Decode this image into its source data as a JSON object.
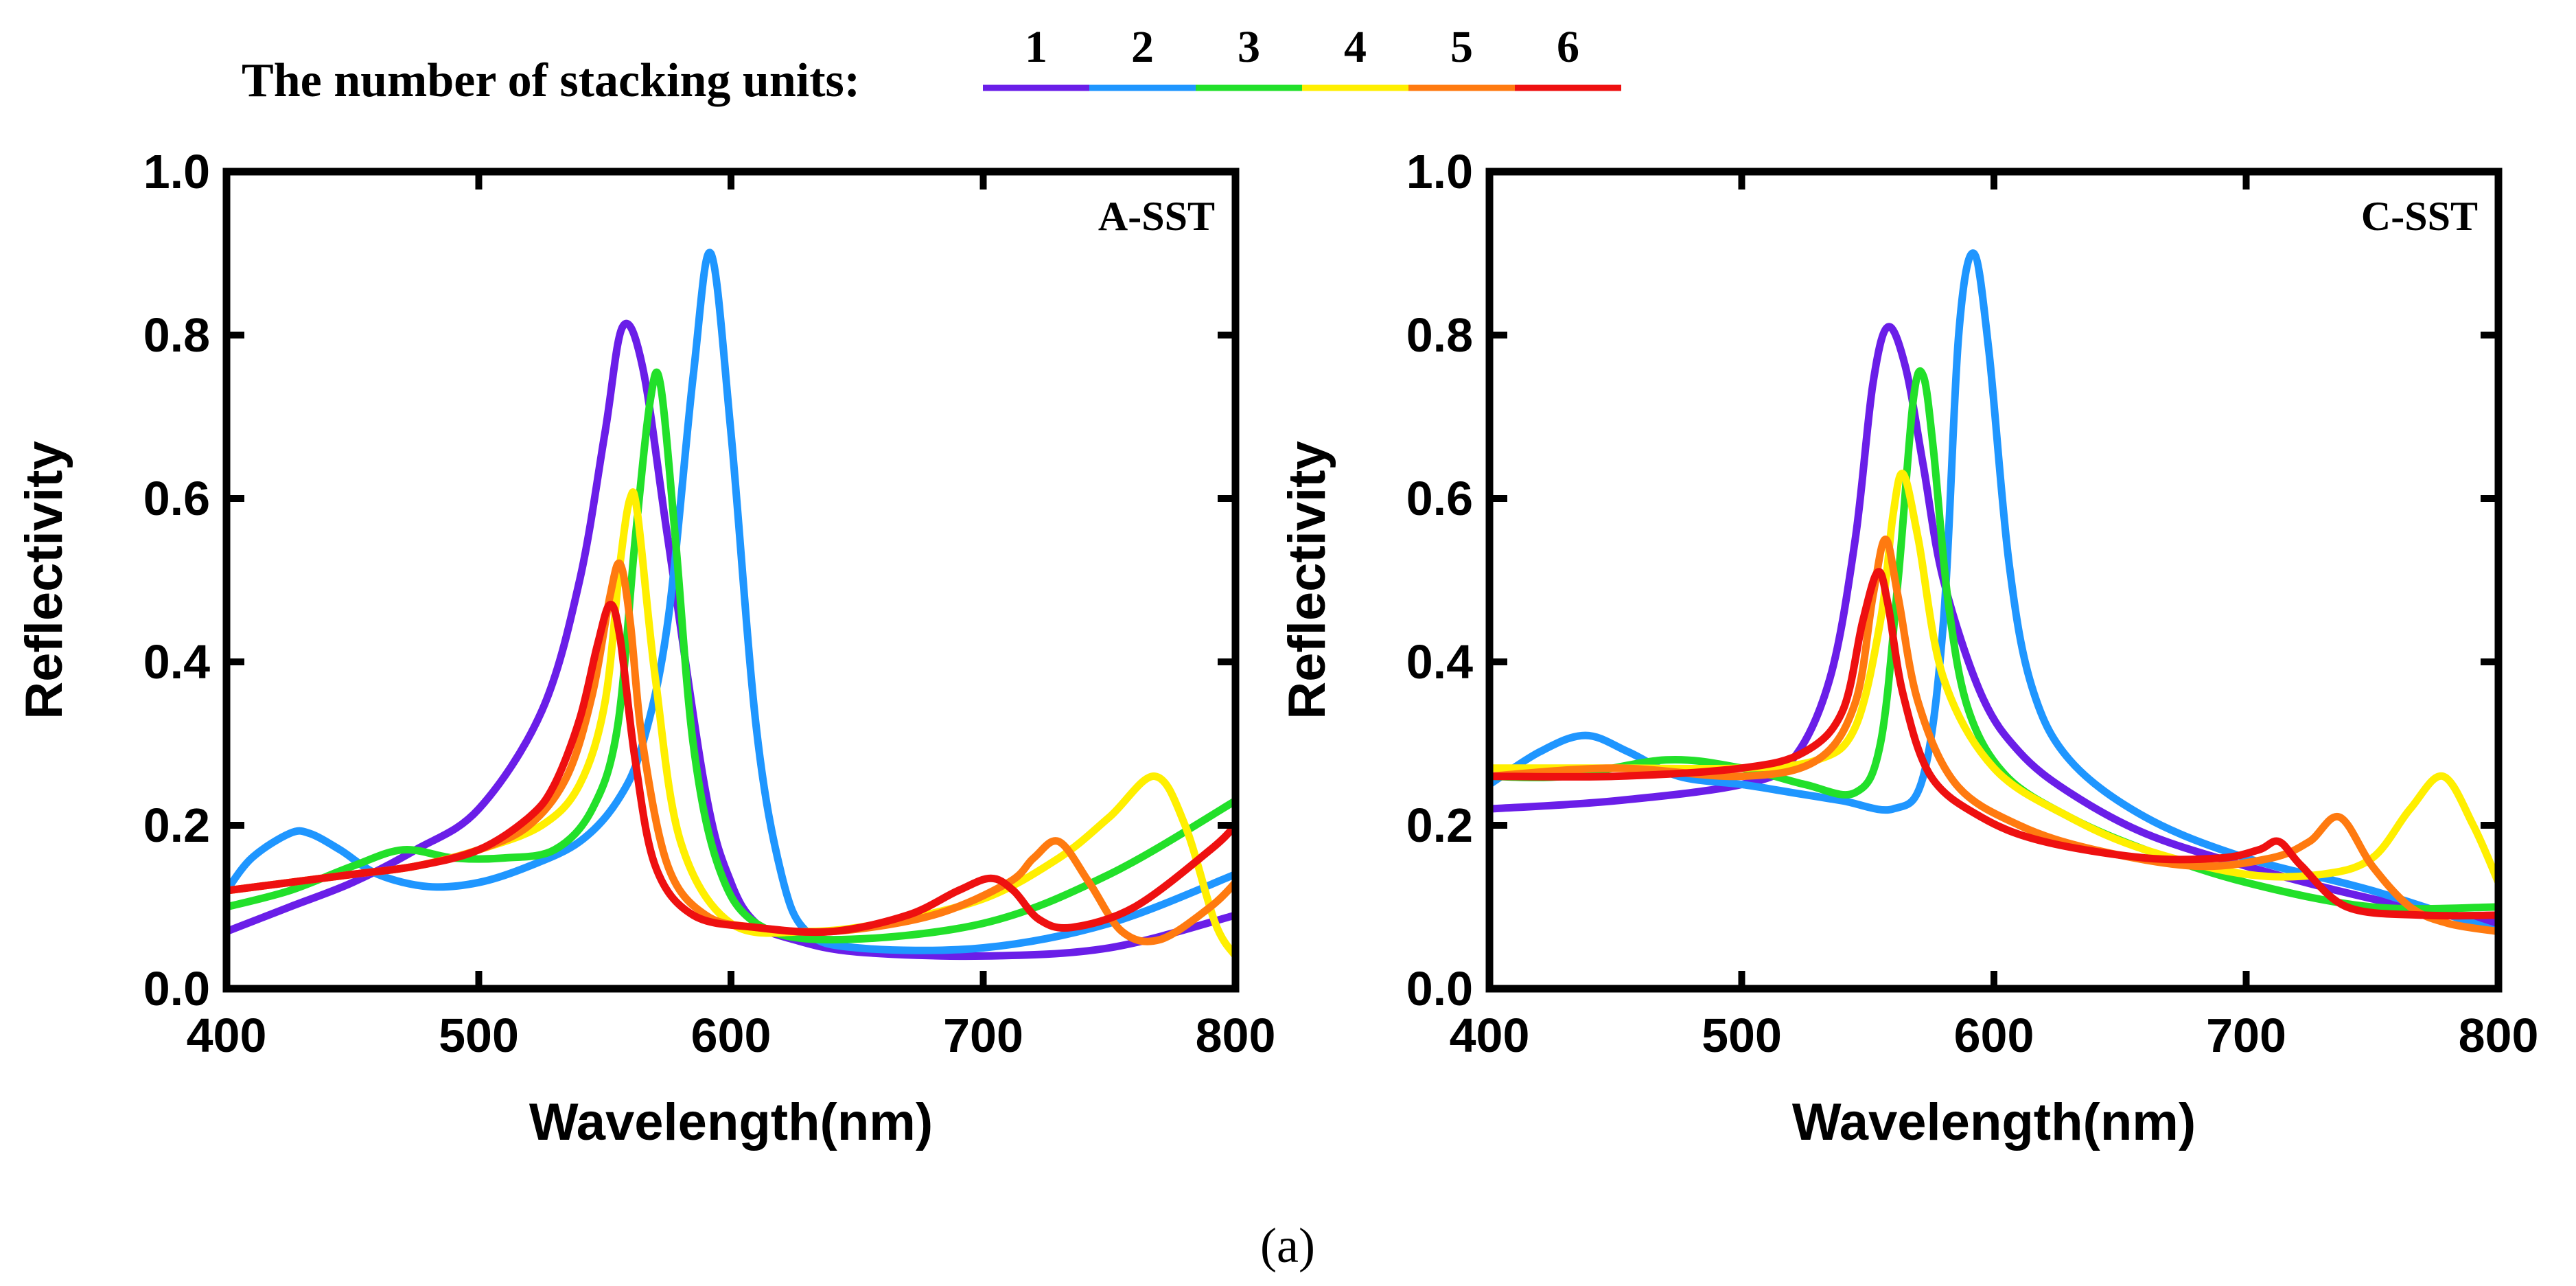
{
  "figure_label": "(a)",
  "legend": {
    "title": "The number of stacking units:",
    "entries": [
      {
        "label": "1",
        "color": "#6a1ee8"
      },
      {
        "label": "2",
        "color": "#1f96ff"
      },
      {
        "label": "3",
        "color": "#22e02a"
      },
      {
        "label": "4",
        "color": "#ffef00"
      },
      {
        "label": "5",
        "color": "#ff7a10"
      },
      {
        "label": "6",
        "color": "#ee1010"
      }
    ]
  },
  "chart_data": [
    {
      "type": "line",
      "title": "A-SST",
      "xlabel": "Wavelength(nm)",
      "ylabel": "Reflectivity",
      "xlim": [
        400,
        800
      ],
      "ylim": [
        0.0,
        1.0
      ],
      "xticks": [
        "400",
        "500",
        "600",
        "700",
        "800"
      ],
      "yticks": [
        "0.0",
        "0.2",
        "0.4",
        "0.6",
        "0.8",
        "1.0"
      ],
      "series": [
        {
          "name": "1",
          "color": "#6a1ee8",
          "x": [
            400,
            425,
            450,
            475,
            500,
            525,
            540,
            550,
            557,
            565,
            575,
            590,
            600,
            610,
            625,
            650,
            700,
            750,
            800
          ],
          "y": [
            0.07,
            0.1,
            0.13,
            0.17,
            0.22,
            0.34,
            0.5,
            0.68,
            0.81,
            0.76,
            0.55,
            0.24,
            0.13,
            0.08,
            0.06,
            0.045,
            0.04,
            0.05,
            0.09
          ]
        },
        {
          "name": "2",
          "color": "#1f96ff",
          "x": [
            400,
            410,
            425,
            433,
            445,
            460,
            480,
            500,
            520,
            540,
            555,
            565,
            575,
            585,
            592,
            600,
            610,
            620,
            630,
            650,
            700,
            750,
            800
          ],
          "y": [
            0.12,
            0.16,
            0.19,
            0.19,
            0.17,
            0.14,
            0.125,
            0.13,
            0.15,
            0.18,
            0.23,
            0.3,
            0.45,
            0.75,
            0.9,
            0.68,
            0.32,
            0.14,
            0.07,
            0.05,
            0.05,
            0.08,
            0.14
          ]
        },
        {
          "name": "3",
          "color": "#22e02a",
          "x": [
            400,
            425,
            450,
            470,
            490,
            510,
            530,
            545,
            555,
            562,
            568,
            572,
            578,
            585,
            595,
            610,
            640,
            700,
            750,
            800
          ],
          "y": [
            0.1,
            0.12,
            0.15,
            0.17,
            0.16,
            0.16,
            0.17,
            0.22,
            0.32,
            0.55,
            0.72,
            0.74,
            0.55,
            0.3,
            0.15,
            0.08,
            0.06,
            0.08,
            0.14,
            0.23
          ]
        },
        {
          "name": "4",
          "color": "#ffef00",
          "x": [
            400,
            425,
            450,
            475,
            500,
            525,
            540,
            550,
            556,
            560,
            563,
            570,
            580,
            600,
            630,
            660,
            700,
            730,
            750,
            768,
            780,
            792,
            800
          ],
          "y": [
            0.12,
            0.13,
            0.14,
            0.15,
            0.17,
            0.2,
            0.25,
            0.35,
            0.52,
            0.6,
            0.58,
            0.38,
            0.18,
            0.08,
            0.07,
            0.08,
            0.11,
            0.16,
            0.21,
            0.26,
            0.2,
            0.08,
            0.04
          ]
        },
        {
          "name": "5",
          "color": "#ff7a10",
          "x": [
            400,
            425,
            450,
            475,
            500,
            520,
            535,
            545,
            552,
            556,
            560,
            565,
            575,
            590,
            610,
            640,
            680,
            710,
            720,
            730,
            742,
            755,
            770,
            790,
            800
          ],
          "y": [
            0.12,
            0.13,
            0.14,
            0.15,
            0.17,
            0.2,
            0.26,
            0.36,
            0.48,
            0.52,
            0.45,
            0.3,
            0.15,
            0.09,
            0.075,
            0.07,
            0.09,
            0.13,
            0.16,
            0.18,
            0.13,
            0.07,
            0.06,
            0.1,
            0.13
          ]
        },
        {
          "name": "6",
          "color": "#ee1010",
          "x": [
            400,
            425,
            450,
            475,
            500,
            520,
            530,
            540,
            547,
            552,
            556,
            562,
            570,
            585,
            610,
            640,
            670,
            690,
            703,
            712,
            722,
            735,
            760,
            790,
            800
          ],
          "y": [
            0.12,
            0.13,
            0.14,
            0.15,
            0.17,
            0.21,
            0.25,
            0.33,
            0.42,
            0.47,
            0.43,
            0.28,
            0.15,
            0.09,
            0.075,
            0.07,
            0.09,
            0.12,
            0.135,
            0.12,
            0.085,
            0.075,
            0.1,
            0.17,
            0.2
          ]
        }
      ]
    },
    {
      "type": "line",
      "title": "C-SST",
      "xlabel": "Wavelength(nm)",
      "ylabel": "Reflectivity",
      "xlim": [
        400,
        800
      ],
      "ylim": [
        0.0,
        1.0
      ],
      "xticks": [
        "400",
        "500",
        "600",
        "700",
        "800"
      ],
      "yticks": [
        "0.0",
        "0.2",
        "0.4",
        "0.6",
        "0.8",
        "1.0"
      ],
      "series": [
        {
          "name": "1",
          "color": "#6a1ee8",
          "x": [
            400,
            450,
            500,
            520,
            535,
            545,
            552,
            558,
            565,
            572,
            580,
            595,
            610,
            630,
            660,
            700,
            750,
            800
          ],
          "y": [
            0.22,
            0.23,
            0.25,
            0.28,
            0.38,
            0.55,
            0.74,
            0.81,
            0.76,
            0.64,
            0.5,
            0.36,
            0.29,
            0.24,
            0.19,
            0.15,
            0.11,
            0.08
          ]
        },
        {
          "name": "2",
          "color": "#1f96ff",
          "x": [
            400,
            420,
            438,
            455,
            475,
            500,
            520,
            540,
            560,
            572,
            580,
            586,
            592,
            598,
            606,
            615,
            630,
            660,
            700,
            750,
            800
          ],
          "y": [
            0.25,
            0.29,
            0.31,
            0.29,
            0.26,
            0.25,
            0.24,
            0.23,
            0.22,
            0.26,
            0.45,
            0.8,
            0.9,
            0.78,
            0.52,
            0.37,
            0.28,
            0.21,
            0.16,
            0.12,
            0.07
          ]
        },
        {
          "name": "3",
          "color": "#22e02a",
          "x": [
            400,
            430,
            470,
            500,
            525,
            545,
            555,
            562,
            568,
            572,
            576,
            582,
            590,
            605,
            630,
            660,
            700,
            750,
            800
          ],
          "y": [
            0.26,
            0.26,
            0.28,
            0.27,
            0.25,
            0.24,
            0.3,
            0.5,
            0.72,
            0.75,
            0.66,
            0.47,
            0.34,
            0.26,
            0.21,
            0.17,
            0.13,
            0.1,
            0.1
          ]
        },
        {
          "name": "4",
          "color": "#ffef00",
          "x": [
            400,
            450,
            500,
            530,
            545,
            555,
            560,
            564,
            570,
            580,
            600,
            630,
            660,
            700,
            730,
            750,
            765,
            778,
            790,
            800
          ],
          "y": [
            0.27,
            0.27,
            0.27,
            0.28,
            0.32,
            0.45,
            0.58,
            0.63,
            0.55,
            0.38,
            0.27,
            0.21,
            0.17,
            0.14,
            0.14,
            0.16,
            0.22,
            0.26,
            0.2,
            0.13
          ]
        },
        {
          "name": "5",
          "color": "#ff7a10",
          "x": [
            400,
            450,
            500,
            530,
            545,
            552,
            557,
            562,
            570,
            585,
            610,
            640,
            680,
            710,
            725,
            737,
            750,
            765,
            780,
            800
          ],
          "y": [
            0.26,
            0.27,
            0.26,
            0.28,
            0.35,
            0.48,
            0.55,
            0.48,
            0.35,
            0.25,
            0.2,
            0.17,
            0.15,
            0.16,
            0.18,
            0.21,
            0.15,
            0.1,
            0.08,
            0.07
          ]
        },
        {
          "name": "6",
          "color": "#ee1010",
          "x": [
            400,
            450,
            500,
            525,
            540,
            548,
            554,
            558,
            564,
            575,
            595,
            620,
            660,
            690,
            705,
            713,
            722,
            740,
            770,
            800
          ],
          "y": [
            0.26,
            0.26,
            0.27,
            0.29,
            0.34,
            0.45,
            0.51,
            0.47,
            0.36,
            0.26,
            0.21,
            0.18,
            0.16,
            0.16,
            0.17,
            0.18,
            0.15,
            0.1,
            0.09,
            0.09
          ]
        }
      ]
    }
  ]
}
